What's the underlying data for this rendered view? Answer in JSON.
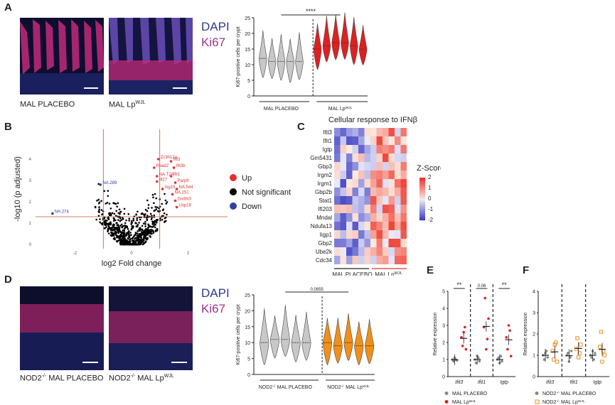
{
  "panels": {
    "A": "A",
    "B": "B",
    "C": "C",
    "D": "D",
    "E": "E",
    "F": "F"
  },
  "micro": {
    "stain1": "DAPI",
    "stain2": "Ki67",
    "A_left": "MAL PLACEBO",
    "A_right_main": "MAL Lp",
    "A_right_sup": "WJL",
    "D_left_pre": "NOD2",
    "D_left_sup": "-/-",
    "D_left_post": " MAL PLACEBO",
    "D_right_pre": "NOD2",
    "D_right_sup": "-/-",
    "D_right_post": " MAL Lp",
    "D_right_sup2": "WJL"
  },
  "colors": {
    "dapi": "#2e3a8c",
    "ki67": "#a0308c",
    "up": "#e03030",
    "down": "#3040a0",
    "ns": "#000000",
    "orange": "#f0901a",
    "gray": "#b0b0b0"
  },
  "chart_data": [
    {
      "id": "A-violin",
      "type": "violin",
      "ylabel": "Ki67-positive cells per crypt",
      "ylim": [
        0,
        25
      ],
      "yticks": [
        0,
        5,
        10,
        15,
        20,
        25
      ],
      "significance": "****",
      "groups": [
        {
          "name": "MAL PLACEBO",
          "color": "#c8c8c8",
          "medians": [
            12,
            11,
            11,
            11,
            11
          ]
        },
        {
          "name_main": "MAL Lp",
          "name_sup": "WJL",
          "color": "#e02020",
          "medians": [
            15,
            16,
            17,
            17,
            16,
            15
          ]
        }
      ]
    },
    {
      "id": "B-volcano",
      "type": "scatter",
      "xlabel": "log2 Fold change",
      "ylabel": "-log10 (p adjusted)",
      "xticks": [
        -2,
        0,
        2
      ],
      "yticks": [
        0,
        1,
        2,
        3,
        4
      ],
      "xlim": [
        -3.4,
        3.4
      ],
      "ylim": [
        -0.2,
        5.4
      ],
      "legend": [
        {
          "label": "Up",
          "color": "#e03030"
        },
        {
          "label": "Not significant",
          "color": "#000000"
        },
        {
          "label": "Down",
          "color": "#3040a0"
        }
      ],
      "labeled_points": [
        {
          "label": "Zc3h12a",
          "x": 0.95,
          "y": 4.0
        },
        {
          "label": "Ifit3",
          "x": 1.4,
          "y": 3.9
        },
        {
          "label": "Rsad2",
          "x": 0.8,
          "y": 3.6
        },
        {
          "label": "Ifit3b",
          "x": 1.5,
          "y": 3.6
        },
        {
          "label": "NA.T24",
          "x": 0.9,
          "y": 3.2
        },
        {
          "label": "Ifit1",
          "x": 1.4,
          "y": 3.2
        },
        {
          "label": "Ifi27",
          "x": 0.9,
          "y": 2.95
        },
        {
          "label": "Parp9",
          "x": 1.55,
          "y": 2.9
        },
        {
          "label": "Isg15",
          "x": 1.1,
          "y": 2.6
        },
        {
          "label": "NA.544",
          "x": 1.6,
          "y": 2.6
        },
        {
          "label": "NA.151",
          "x": 1.45,
          "y": 2.35
        },
        {
          "label": "Gsdm3",
          "x": 1.55,
          "y": 2.05
        },
        {
          "label": "Usp18",
          "x": 1.6,
          "y": 1.75
        },
        {
          "label": "NA.289",
          "x": -1.1,
          "y": 2.8
        },
        {
          "label": "NA.274",
          "x": -2.8,
          "y": 1.45
        }
      ]
    },
    {
      "id": "C-heatmap",
      "type": "heatmap",
      "title": "Cellular response to IFNβ",
      "legend_title": "Z-Score",
      "scale_ticks": [
        "2",
        "1",
        "0",
        "-1",
        "-2"
      ],
      "rows": [
        "Ifit3",
        "Ifit1",
        "Igtp",
        "Gm5431",
        "Gbp3",
        "Irgm2",
        "Irgm1",
        "Gbp2b",
        "Stat1",
        "Ifi203",
        "Mndal",
        "Ndufa13",
        "Iigp1",
        "Gbp2",
        "Ube2k",
        "Cdc34"
      ],
      "groups": [
        {
          "name": "MAL PLACEBO",
          "cols": 6
        },
        {
          "name_main": "MAL Lp",
          "name_sup": "WJL",
          "cols": 6
        }
      ]
    },
    {
      "id": "D-violin",
      "type": "violin",
      "ylabel": "Ki67-positive cells per crypt",
      "ylim": [
        0,
        25
      ],
      "yticks": [
        0,
        5,
        10,
        15,
        20,
        25
      ],
      "significance": "0.0855",
      "groups": [
        {
          "name_pre": "NOD2",
          "name_sup": "-/-",
          "name_post": " MAL PLACEBO",
          "color": "#c8c8c8",
          "medians": [
            10,
            11,
            11,
            10,
            10
          ]
        },
        {
          "name_pre": "NOD2",
          "name_sup": "-/-",
          "name_post": " MAL Lp",
          "name_sup2": "WJL",
          "color": "#f0901a",
          "medians": [
            10,
            9,
            10,
            9,
            9
          ]
        }
      ]
    },
    {
      "id": "E-dot",
      "type": "scatter",
      "ylabel": "Relative expression",
      "ylim": [
        0,
        5
      ],
      "yticks": [
        0,
        1,
        2,
        3,
        4,
        5
      ],
      "categories": [
        "Ifit3",
        "Ifit1",
        "Igtp"
      ],
      "significance": [
        "**",
        "0.06",
        "**"
      ],
      "legend": [
        {
          "label": "MAL PLACEBO",
          "color": "#888888"
        },
        {
          "label_main": "MAL Lp",
          "label_sup": "WJL",
          "color": "#e02020"
        }
      ],
      "series": [
        {
          "name": "MAL PLACEBO",
          "values": [
            [
              1.0,
              0.9,
              1.1,
              1.0,
              0.95
            ],
            [
              1.0,
              0.8,
              1.2,
              1.1,
              0.9
            ],
            [
              1.0,
              1.1,
              0.8,
              1.2,
              0.9
            ]
          ]
        },
        {
          "name": "MAL Lp",
          "values": [
            [
              2.3,
              1.8,
              2.6,
              2.9,
              1.6
            ],
            [
              2.9,
              4.6,
              1.6,
              2.2,
              3.4
            ],
            [
              2.3,
              1.6,
              3.0,
              2.7,
              1.2
            ]
          ]
        }
      ]
    },
    {
      "id": "F-dot",
      "type": "scatter",
      "ylabel": "Relative expression",
      "ylim": [
        0,
        4
      ],
      "yticks": [
        0,
        1,
        2,
        3,
        4
      ],
      "categories": [
        "Ifit3",
        "Ifit1",
        "Igtp"
      ],
      "legend": [
        {
          "label_pre": "NOD2",
          "label_sup": "-/-",
          "label_post": " MAL PLACEBO",
          "color": "#888888"
        },
        {
          "label_pre": "NOD2",
          "label_sup": "-/-",
          "label_post": " MAL Lp",
          "label_sup2": "WJL",
          "color": "#f0901a"
        }
      ],
      "series": [
        {
          "name": "NOD2-/- MAL PLACEBO",
          "values": [
            [
              1.0,
              0.8,
              1.1,
              1.2,
              0.9
            ],
            [
              1.0,
              1.1,
              0.7,
              0.9,
              1.2
            ],
            [
              1.0,
              0.9,
              1.2,
              0.8,
              1.1
            ]
          ]
        },
        {
          "name": "NOD2-/- MAL LpWJL",
          "values": [
            [
              1.2,
              0.8,
              1.5,
              1.6,
              0.7
            ],
            [
              1.3,
              1.8,
              0.9,
              1.1,
              1.5
            ],
            [
              1.4,
              2.1,
              0.7,
              1.2,
              1.0
            ]
          ]
        }
      ]
    }
  ]
}
